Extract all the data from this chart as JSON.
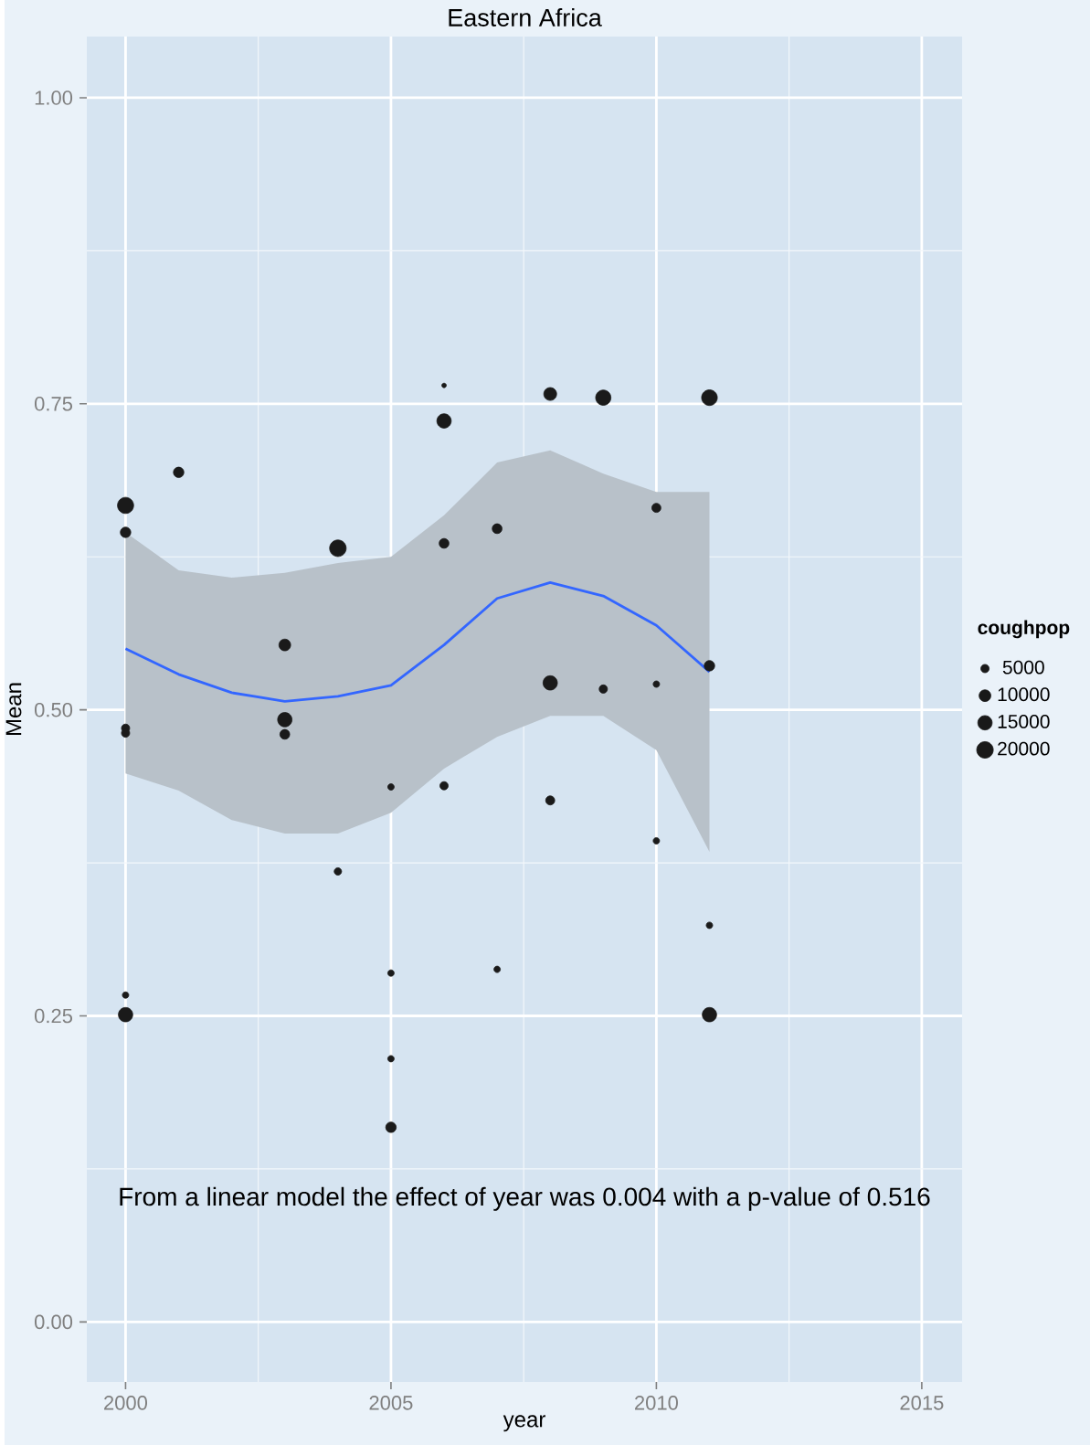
{
  "chart_data": {
    "type": "bubble",
    "title": "Eastern Africa",
    "xlabel": "year",
    "ylabel": "Mean",
    "legend_title": "coughpop",
    "grid": true,
    "xlim": [
      1999.27,
      2015.76
    ],
    "ylim": [
      -0.049,
      1.05
    ],
    "xticks": [
      2000,
      2005,
      2010,
      2015
    ],
    "yticks": [
      {
        "value": 0,
        "label": "0.00"
      },
      {
        "value": 0.25,
        "label": "0.25"
      },
      {
        "value": 0.5,
        "label": "0.50"
      },
      {
        "value": 0.75,
        "label": "0.75"
      },
      {
        "value": 1,
        "label": "1.00"
      }
    ],
    "size_legend": [
      5000,
      10000,
      15000,
      20000
    ],
    "series": [
      {
        "color": "#1a1a1a",
        "x": [
          2004,
          2000,
          2000,
          2000,
          2000,
          2000,
          2000,
          2001,
          2003,
          2003,
          2003,
          2004,
          2005,
          2005,
          2005,
          2005,
          2006,
          2006,
          2006,
          2006,
          2007,
          2007,
          2008,
          2008,
          2008,
          2009,
          2009,
          2010,
          2010,
          2010,
          2011,
          2011,
          2011,
          2011
        ],
        "values": [
          0.632,
          0.667,
          0.645,
          0.485,
          0.481,
          0.267,
          0.251,
          0.694,
          0.553,
          0.492,
          0.48,
          0.368,
          0.437,
          0.285,
          0.215,
          0.159,
          0.765,
          0.736,
          0.636,
          0.438,
          0.648,
          0.288,
          0.758,
          0.522,
          0.426,
          0.755,
          0.517,
          0.665,
          0.521,
          0.393,
          0.755,
          0.536,
          0.324,
          0.251
        ],
        "sizes": [
          20000,
          19000,
          8000,
          5000,
          5000,
          3000,
          15000,
          8000,
          10000,
          15000,
          7000,
          4000,
          3000,
          3000,
          3000,
          8000,
          1500,
          15000,
          7000,
          5000,
          7000,
          3000,
          12000,
          15000,
          6000,
          17000,
          5000,
          6000,
          3000,
          3000,
          18000,
          8000,
          3000,
          15000
        ]
      },
      {
        "type": "line",
        "color": "#3366ff",
        "x": [
          2000,
          2001,
          2002,
          2003,
          2004,
          2005,
          2006,
          2007,
          2008,
          2009,
          2010,
          2011
        ],
        "values": [
          0.55,
          0.529,
          0.514,
          0.507,
          0.511,
          0.52,
          0.553,
          0.591,
          0.604,
          0.593,
          0.569,
          0.531
        ],
        "lower": [
          0.448,
          0.434,
          0.41,
          0.399,
          0.399,
          0.416,
          0.452,
          0.478,
          0.495,
          0.495,
          0.467,
          0.384
        ],
        "upper": [
          0.645,
          0.614,
          0.608,
          0.612,
          0.62,
          0.625,
          0.659,
          0.702,
          0.712,
          0.693,
          0.678,
          0.678
        ]
      }
    ],
    "annotations": [
      "From a linear model the effect of year was 0.004 with a p-value of 0.516"
    ]
  }
}
